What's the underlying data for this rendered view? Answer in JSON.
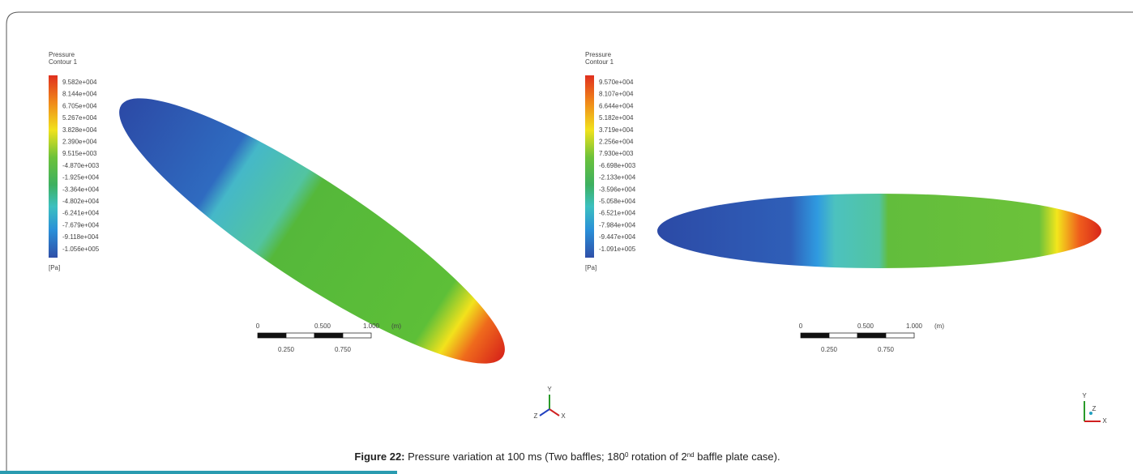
{
  "panels": [
    {
      "legend": {
        "title": [
          "Pressure",
          "Contour 1"
        ],
        "values": [
          "9.582e+004",
          "8.144e+004",
          "6.705e+004",
          "5.267e+004",
          "3.828e+004",
          "2.390e+004",
          "9.515e+003",
          "-4.870e+003",
          "-1.925e+004",
          "-3.364e+004",
          "-4.802e+004",
          "-6.241e+004",
          "-7.679e+004",
          "-9.118e+004",
          "-1.056e+005"
        ],
        "unit": "[Pa]"
      },
      "scale": {
        "top": [
          "0",
          "0.500",
          "1.000",
          "(m)"
        ],
        "bottom": [
          "0.250",
          "0.750"
        ]
      },
      "triad": [
        "Y",
        "X",
        "Z"
      ]
    },
    {
      "legend": {
        "title": [
          "Pressure",
          "Contour 1"
        ],
        "values": [
          "9.570e+004",
          "8.107e+004",
          "6.644e+004",
          "5.182e+004",
          "3.719e+004",
          "2.256e+004",
          "7.930e+003",
          "-6.698e+003",
          "-2.133e+004",
          "-3.596e+004",
          "-5.058e+004",
          "-6.521e+004",
          "-7.984e+004",
          "-9.447e+004",
          "-1.091e+005"
        ],
        "unit": "[Pa]"
      },
      "scale": {
        "top": [
          "0",
          "0.500",
          "1.000",
          "(m)"
        ],
        "bottom": [
          "0.250",
          "0.750"
        ]
      },
      "triad": [
        "Y",
        "X",
        "Z"
      ]
    }
  ],
  "caption": {
    "label": "Figure 22:",
    "parts": [
      {
        "text": " Pressure variation at 100 ms (Two baffles; 180",
        "sup": false
      },
      {
        "text": "0",
        "sup": true
      },
      {
        "text": " rotation of 2",
        "sup": false
      },
      {
        "text": "nd",
        "sup": true
      },
      {
        "text": " baffle plate case).",
        "sup": false
      }
    ]
  }
}
